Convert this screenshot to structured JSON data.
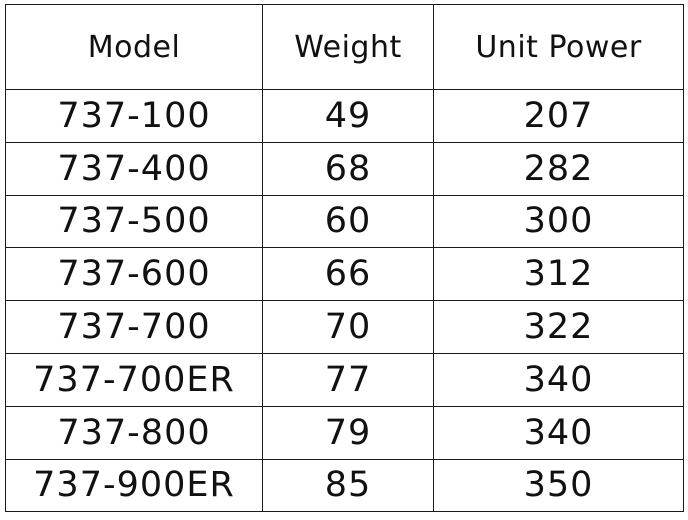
{
  "table": {
    "headers": [
      "Model",
      "Weight",
      "Unit Power"
    ],
    "rows": [
      [
        "737-100",
        "49",
        "207"
      ],
      [
        "737-400",
        "68",
        "282"
      ],
      [
        "737-500",
        "60",
        "300"
      ],
      [
        "737-600",
        "66",
        "312"
      ],
      [
        "737-700",
        "70",
        "322"
      ],
      [
        "737-700ER",
        "77",
        "340"
      ],
      [
        "737-800",
        "79",
        "340"
      ],
      [
        "737-900ER",
        "85",
        "350"
      ]
    ]
  }
}
